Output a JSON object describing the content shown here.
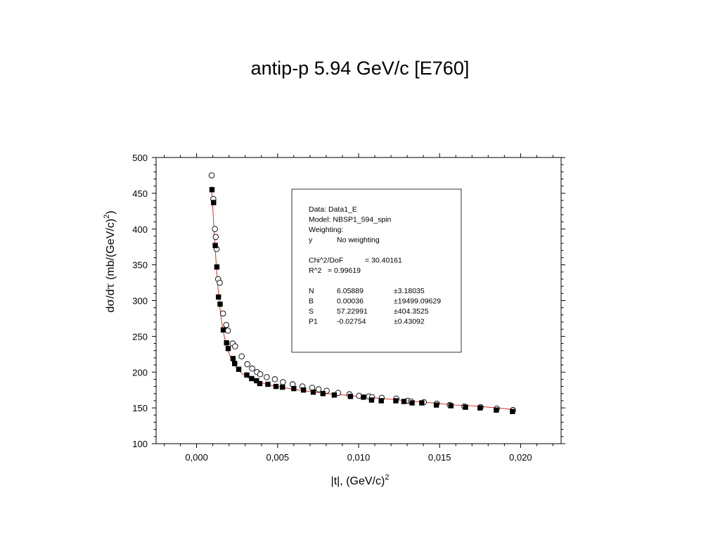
{
  "chart_data": {
    "type": "scatter",
    "title": "antip-p 5.94 GeV/c [E760]",
    "xlabel": "|t|, (GeV/c)",
    "xlabel_sup": "2",
    "ylabel_parts": [
      "d",
      "σ",
      "/d",
      "τ",
      " (mb/(GeV/c)",
      "2",
      ")"
    ],
    "xlim": [
      -0.0025,
      0.0225
    ],
    "ylim": [
      100,
      500
    ],
    "xticks": [
      0.0,
      0.005,
      0.01,
      0.015,
      0.02
    ],
    "xtick_labels": [
      "0,000",
      "0,005",
      "0,010",
      "0,015",
      "0,020"
    ],
    "yticks": [
      100,
      150,
      200,
      250,
      300,
      350,
      400,
      450,
      500
    ],
    "ytick_labels": [
      "100",
      "150",
      "200",
      "250",
      "300",
      "350",
      "400",
      "450",
      "500"
    ],
    "grid": false,
    "series": [
      {
        "marker": "filled-square",
        "color": "#000000",
        "x": [
          0.00095,
          0.00105,
          0.00115,
          0.00125,
          0.00135,
          0.00145,
          0.00165,
          0.00185,
          0.00195,
          0.00225,
          0.00235,
          0.0026,
          0.0031,
          0.0034,
          0.0037,
          0.0039,
          0.0044,
          0.0049,
          0.0053,
          0.006,
          0.0066,
          0.0072,
          0.0078,
          0.0085,
          0.0095,
          0.0103,
          0.0108,
          0.0114,
          0.0123,
          0.0128,
          0.0133,
          0.0139,
          0.0148,
          0.0157,
          0.0166,
          0.0175,
          0.0185,
          0.0195
        ],
        "y": [
          455,
          437,
          377,
          347,
          305,
          295,
          259,
          241,
          233,
          219,
          212,
          204,
          196,
          191,
          188,
          184,
          183,
          180,
          179,
          177,
          175,
          172,
          170,
          168,
          166,
          165,
          161,
          160,
          160,
          159,
          157,
          157,
          154,
          153,
          151,
          150,
          147,
          145
        ]
      },
      {
        "marker": "open-circle",
        "color": "#000000",
        "x": [
          0.00093,
          0.00103,
          0.00113,
          0.00118,
          0.00124,
          0.00133,
          0.00143,
          0.00163,
          0.00183,
          0.00193,
          0.00223,
          0.00238,
          0.00278,
          0.00313,
          0.00343,
          0.00373,
          0.00393,
          0.00433,
          0.00483,
          0.00533,
          0.00593,
          0.00653,
          0.00713,
          0.00753,
          0.00803,
          0.00873,
          0.00943,
          0.01003,
          0.01063,
          0.01083,
          0.01143,
          0.01233,
          0.01303,
          0.01323,
          0.01403,
          0.01483,
          0.01563,
          0.01653,
          0.01753,
          0.01853,
          0.01953
        ],
        "y": [
          475,
          442,
          400,
          389,
          372,
          330,
          325,
          282,
          266,
          258,
          240,
          236,
          222,
          211,
          205,
          200,
          197,
          193,
          190,
          186,
          183,
          180,
          178,
          176,
          174,
          171,
          169,
          167,
          166,
          165,
          164,
          163,
          160,
          159,
          158,
          156,
          154,
          152,
          151,
          149,
          147
        ]
      }
    ],
    "fit_curve": {
      "color": "#e03020",
      "x": [
        0.00092,
        0.001,
        0.0011,
        0.0012,
        0.0013,
        0.0014,
        0.0015,
        0.0016,
        0.0018,
        0.002,
        0.0022,
        0.0025,
        0.0028,
        0.0032,
        0.0036,
        0.004,
        0.0045,
        0.005,
        0.006,
        0.007,
        0.008,
        0.009,
        0.01,
        0.011,
        0.012,
        0.013,
        0.014,
        0.015,
        0.016,
        0.017,
        0.018,
        0.019,
        0.0195
      ],
      "y": [
        460,
        430,
        390,
        355,
        322,
        298,
        278,
        262,
        240,
        226,
        215,
        205,
        198,
        192,
        188,
        185,
        182,
        180,
        176,
        173,
        170,
        168,
        166,
        164,
        162,
        160,
        158,
        156,
        154,
        153,
        151,
        149,
        148
      ]
    },
    "legend_box": {
      "lines": [
        {
          "cols": [
            "Data: Data1_E"
          ]
        },
        {
          "cols": [
            "Model: NBSP1_594_spin"
          ]
        },
        {
          "cols": [
            "Weighting:"
          ]
        },
        {
          "cols": [
            "y",
            "No weighting"
          ]
        },
        {
          "cols": [
            ""
          ]
        },
        {
          "cols": [
            "Chi^2/DoF",
            "= 30.40161"
          ]
        },
        {
          "cols": [
            "R^2",
            "=  0.99619"
          ]
        },
        {
          "cols": [
            ""
          ]
        },
        {
          "cols": [
            "N",
            "6.05889",
            "±3.18035"
          ]
        },
        {
          "cols": [
            "B",
            "0.00036",
            "±19499.09629"
          ]
        },
        {
          "cols": [
            "S",
            "57.22991",
            "±404.3525"
          ]
        },
        {
          "cols": [
            "P1",
            "-0.02754",
            "±0.43092"
          ]
        }
      ]
    }
  }
}
